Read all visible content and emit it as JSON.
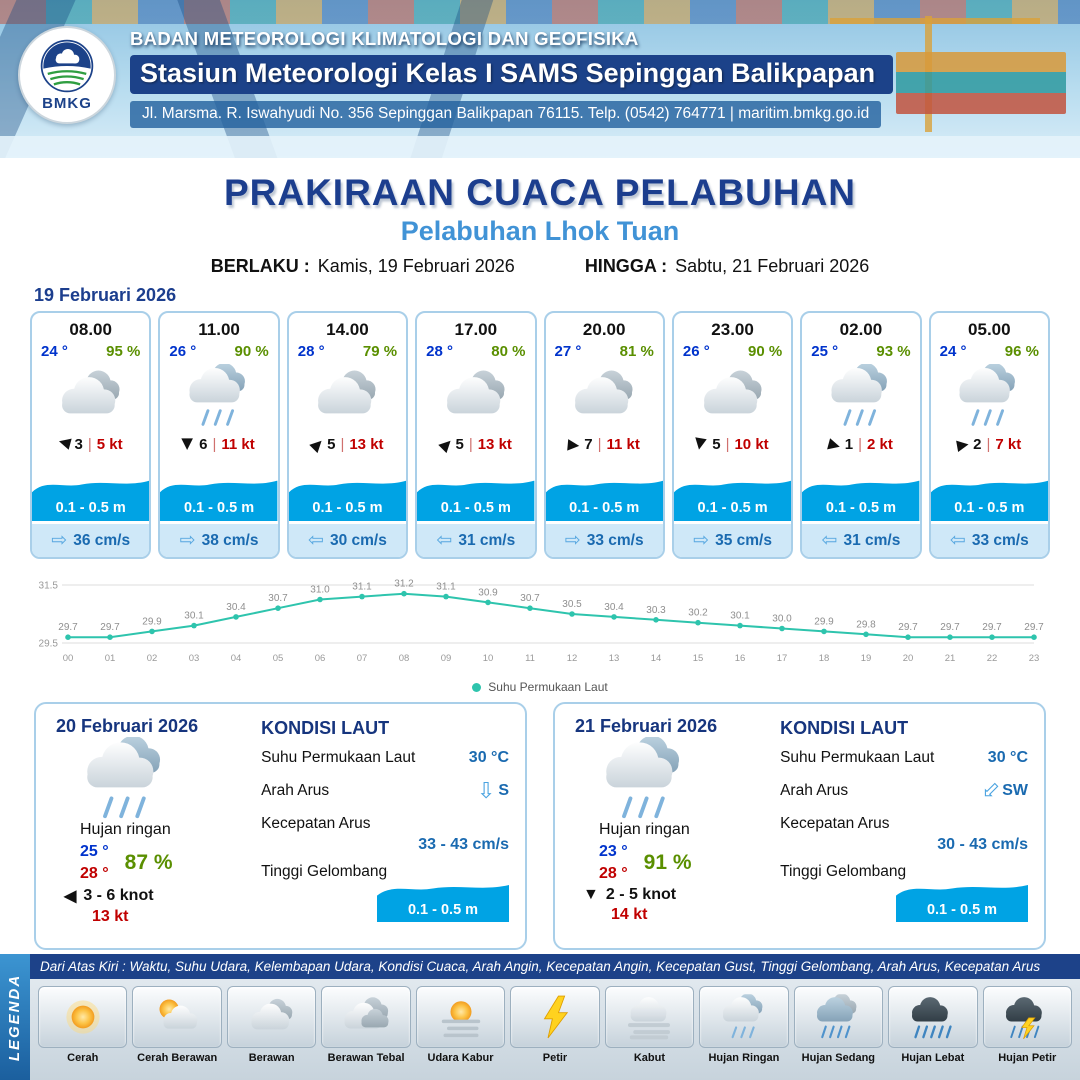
{
  "header": {
    "agency": "BADAN METEOROLOGI KLIMATOLOGI DAN GEOFISIKA",
    "station": "Stasiun Meteorologi Kelas I SAMS Sepinggan Balikpapan",
    "address": "Jl. Marsma. R. Iswahyudi No. 356 Sepinggan Balikpapan 76115. Telp. (0542) 764771 | maritim.bmkg.go.id",
    "logo_text": "BMKG"
  },
  "title": {
    "main": "PRAKIRAAN CUACA PELABUHAN",
    "subtitle": "Pelabuhan Lhok Tuan"
  },
  "validity": {
    "from_label": "BERLAKU :",
    "from": "Kamis, 19 Februari 2026",
    "to_label": "HINGGA :",
    "to": "Sabtu, 21 Februari 2026"
  },
  "day1": {
    "date_label": "19 Februari 2026",
    "cards": [
      {
        "time": "08.00",
        "temp": "24 °",
        "humidity": "95 %",
        "icon": "berawan",
        "wind_dir_deg": 195,
        "wind_value": "3",
        "wind_speed": "5 kt",
        "wave_height": "0.1 - 0.5 m",
        "current_dir": "right",
        "current_speed": "36 cm/s"
      },
      {
        "time": "11.00",
        "temp": "26 °",
        "humidity": "90 %",
        "icon": "hujan-ringan",
        "wind_dir_deg": 90,
        "wind_value": "6",
        "wind_speed": "11 kt",
        "wave_height": "0.1 - 0.5 m",
        "current_dir": "right",
        "current_speed": "38 cm/s"
      },
      {
        "time": "14.00",
        "temp": "28 °",
        "humidity": "79 %",
        "icon": "berawan",
        "wind_dir_deg": -45,
        "wind_value": "5",
        "wind_speed": "13 kt",
        "wave_height": "0.1 - 0.5 m",
        "current_dir": "left",
        "current_speed": "30 cm/s"
      },
      {
        "time": "17.00",
        "temp": "28 °",
        "humidity": "80 %",
        "icon": "berawan",
        "wind_dir_deg": -45,
        "wind_value": "5",
        "wind_speed": "13 kt",
        "wave_height": "0.1 - 0.5 m",
        "current_dir": "left",
        "current_speed": "31 cm/s"
      },
      {
        "time": "20.00",
        "temp": "27 °",
        "humidity": "81 %",
        "icon": "berawan",
        "wind_dir_deg": 5,
        "wind_value": "7",
        "wind_speed": "11 kt",
        "wave_height": "0.1 - 0.5 m",
        "current_dir": "right",
        "current_speed": "33 cm/s"
      },
      {
        "time": "23.00",
        "temp": "26 °",
        "humidity": "90 %",
        "icon": "berawan",
        "wind_dir_deg": 100,
        "wind_value": "5",
        "wind_speed": "10 kt",
        "wave_height": "0.1 - 0.5 m",
        "current_dir": "right",
        "current_speed": "35 cm/s"
      },
      {
        "time": "02.00",
        "temp": "25 °",
        "humidity": "93 %",
        "icon": "hujan-ringan",
        "wind_dir_deg": 15,
        "wind_value": "1",
        "wind_speed": "2 kt",
        "wave_height": "0.1 - 0.5 m",
        "current_dir": "left",
        "current_speed": "31 cm/s"
      },
      {
        "time": "05.00",
        "temp": "24 °",
        "humidity": "96 %",
        "icon": "hujan-ringan",
        "wind_dir_deg": -10,
        "wind_value": "2",
        "wind_speed": "7 kt",
        "wave_height": "0.1 - 0.5 m",
        "current_dir": "left",
        "current_speed": "33 cm/s"
      }
    ]
  },
  "chart_data": {
    "type": "line",
    "x": [
      "00",
      "01",
      "02",
      "03",
      "04",
      "05",
      "06",
      "07",
      "08",
      "09",
      "10",
      "11",
      "12",
      "13",
      "14",
      "15",
      "16",
      "17",
      "18",
      "19",
      "20",
      "21",
      "22",
      "23"
    ],
    "series": [
      {
        "name": "Suhu Permukaan Laut",
        "values": [
          29.7,
          29.7,
          29.9,
          30.1,
          30.4,
          30.7,
          31.0,
          31.1,
          31.2,
          31.1,
          30.9,
          30.7,
          30.5,
          30.4,
          30.3,
          30.2,
          30.1,
          30.0,
          29.9,
          29.8,
          29.7,
          29.7,
          29.7,
          29.7
        ]
      }
    ],
    "ylim": [
      29.5,
      31.5
    ],
    "yticks": [
      29.5,
      31.5
    ],
    "line_color": "#2ec4ad",
    "grid": true,
    "legend_position": "bottom"
  },
  "sea": {
    "title": "KONDISI LAUT",
    "labels": {
      "sst": "Suhu Permukaan Laut",
      "current_dir": "Arah Arus",
      "current_speed": "Kecepatan Arus",
      "wave": "Tinggi Gelombang"
    }
  },
  "daily": [
    {
      "date": "20 Februari 2026",
      "icon": "hujan-ringan",
      "condition": "Hujan ringan",
      "temp_min": "25 °",
      "temp_max": "28 °",
      "humidity": "87 %",
      "wind_arrow": "◀",
      "wind_range": "3 - 6 knot",
      "gust": "13 kt",
      "sea": {
        "sst": "30 °C",
        "dir_label": "S",
        "dir_rotation": 0,
        "speed": "33  - 43 cm/s",
        "wave": "0.1 - 0.5 m"
      }
    },
    {
      "date": "21 Februari 2026",
      "icon": "hujan-ringan",
      "condition": "Hujan ringan",
      "temp_min": "23 °",
      "temp_max": "28 °",
      "humidity": "91 %",
      "wind_arrow": "▼",
      "wind_range": "2 - 5 knot",
      "gust": "14 kt",
      "sea": {
        "sst": "30 °C",
        "dir_label": "SW",
        "dir_rotation": 45,
        "speed": "30  - 43 cm/s",
        "wave": "0.1 - 0.5 m"
      }
    }
  ],
  "legend": {
    "side_label": "LEGENDA",
    "description": "Dari Atas Kiri : Waktu, Suhu Udara, Kelembapan Udara, Kondisi Cuaca, Arah Angin, Kecepatan Angin, Kecepatan Gust, Tinggi Gelombang, Arah Arus, Kecepatan Arus",
    "items": [
      {
        "label": "Cerah",
        "icon": "cerah"
      },
      {
        "label": "Cerah Berawan",
        "icon": "cerah-berawan"
      },
      {
        "label": "Berawan",
        "icon": "berawan"
      },
      {
        "label": "Berawan Tebal",
        "icon": "berawan-tebal"
      },
      {
        "label": "Udara Kabur",
        "icon": "udara-kabur"
      },
      {
        "label": "Petir",
        "icon": "petir"
      },
      {
        "label": "Kabut",
        "icon": "kabut"
      },
      {
        "label": "Hujan Ringan",
        "icon": "hujan-ringan"
      },
      {
        "label": "Hujan Sedang",
        "icon": "hujan-sedang"
      },
      {
        "label": "Hujan Lebat",
        "icon": "hujan-lebat"
      },
      {
        "label": "Hujan Petir",
        "icon": "hujan-petir"
      }
    ]
  },
  "colors": {
    "navy": "#1c4289",
    "title_blue": "#1c3e8e",
    "subtitle_blue": "#4193d6",
    "temp_blue": "#0033cc",
    "humidity_green": "#5a8f00",
    "speed_red": "#c00000",
    "wave_blue": "#00a3e4",
    "current_strip_bg": "#cfe8f8",
    "current_text": "#1a6ab0",
    "chart_line": "#2ec4ad"
  }
}
